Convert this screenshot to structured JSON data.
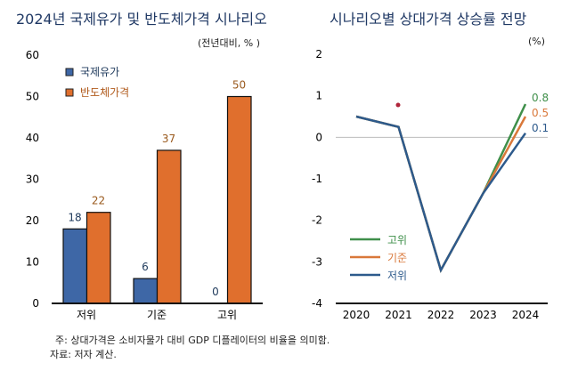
{
  "chart_data": [
    {
      "type": "bar",
      "title": "2024년 국제유가 및 반도체가격 시나리오",
      "unit": "(전년대비, % )",
      "categories": [
        "저위",
        "기준",
        "고위"
      ],
      "ylim": [
        0,
        60
      ],
      "yticks": [
        0,
        10,
        20,
        30,
        40,
        50,
        60
      ],
      "series": [
        {
          "name": "국제유가",
          "values": [
            18,
            6,
            0
          ],
          "color": "#3e67a6"
        },
        {
          "name": "반도체가격",
          "values": [
            22,
            37,
            50
          ],
          "color": "#e06f2d"
        }
      ],
      "legend": "top-left"
    },
    {
      "type": "line",
      "title": "시나리오별 상대가격 상승률 전망",
      "unit": "(%)",
      "x": [
        2020,
        2021,
        2022,
        2023,
        2024
      ],
      "ylim": [
        -4,
        2
      ],
      "yticks": [
        -4,
        -3,
        -2,
        -1,
        0,
        1,
        2
      ],
      "series": [
        {
          "name": "고위",
          "values": [
            0.5,
            0.25,
            -3.2,
            -1.35,
            0.8
          ],
          "label": "0.8",
          "color": "#3f8f4a"
        },
        {
          "name": "기준",
          "values": [
            0.5,
            0.25,
            -3.2,
            -1.35,
            0.5
          ],
          "label": "0.5",
          "color": "#d9783a"
        },
        {
          "name": "저위",
          "values": [
            0.5,
            0.25,
            -3.2,
            -1.35,
            0.1
          ],
          "label": "0.1",
          "color": "#2d5a8c"
        }
      ],
      "legend": "bottom-left"
    }
  ],
  "notes": {
    "note": "주: 상대가격은 소비자물가 대비 GDP 디플레이터의 비율을 의미함.",
    "source": "자료: 저자 계산."
  }
}
